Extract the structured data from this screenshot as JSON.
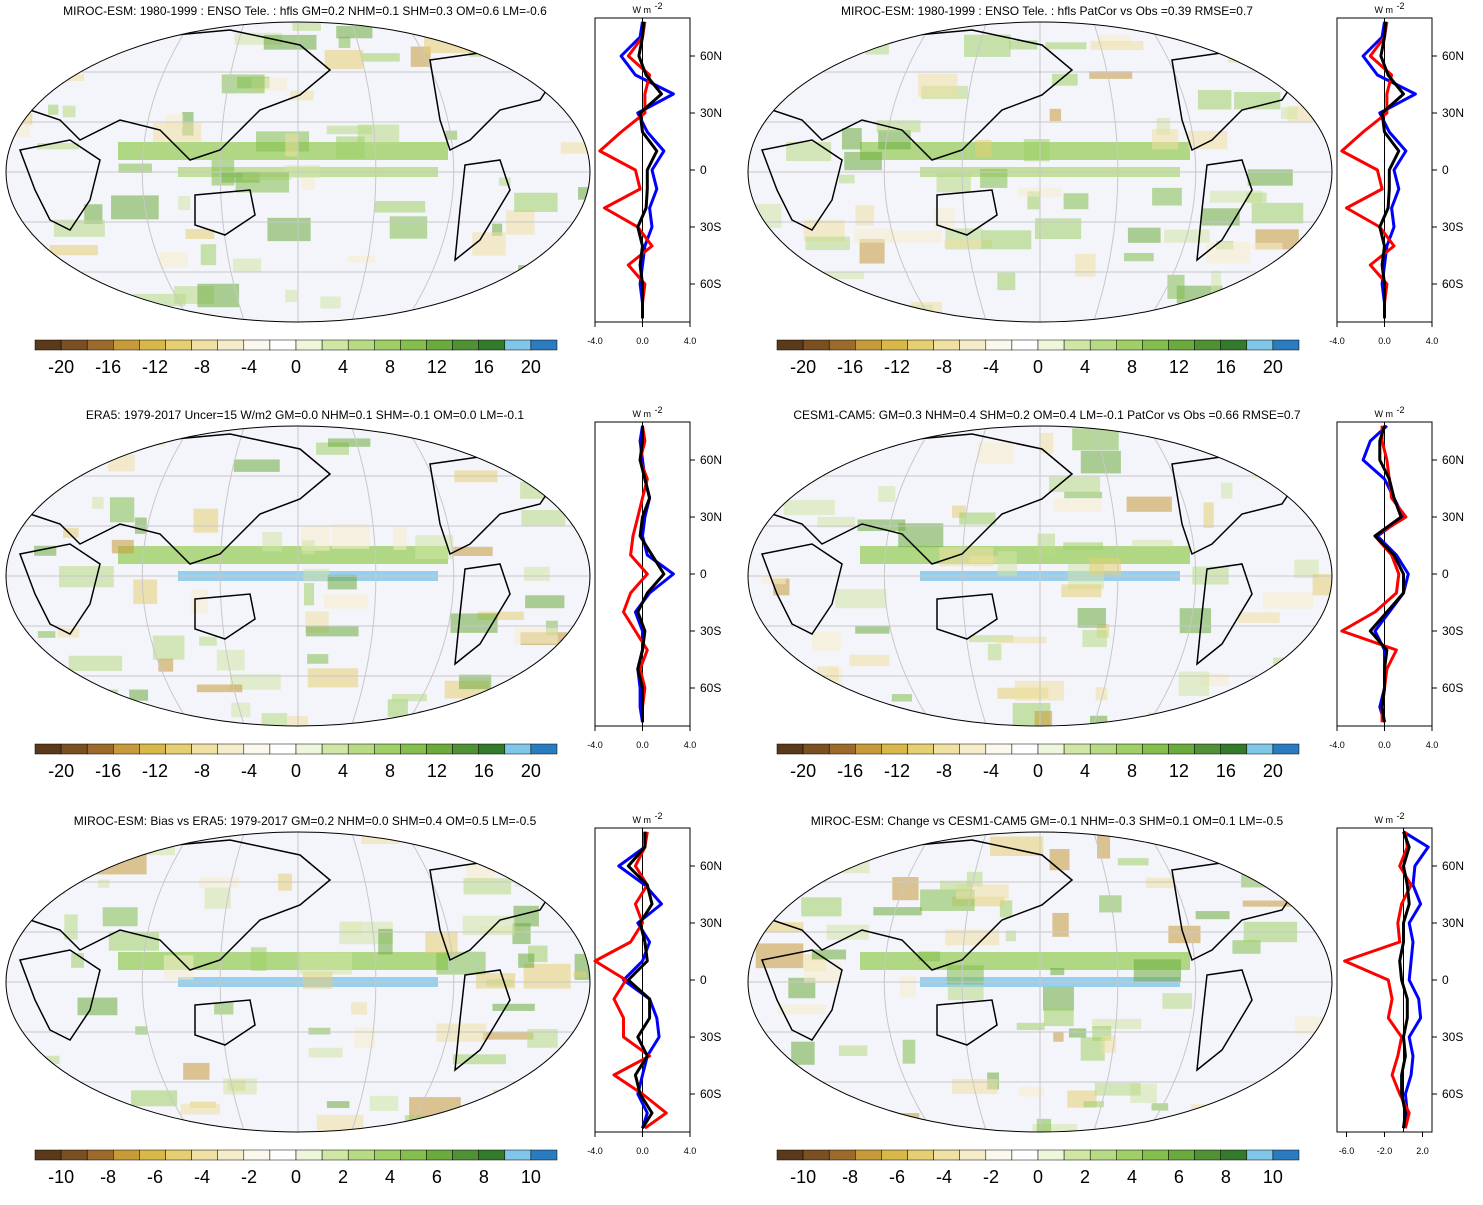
{
  "colors": {
    "zonal_model": "#ff0000",
    "zonal_obs": "#0000ff",
    "zonal_black": "#000000",
    "land_outline": "#000000",
    "ocean_bg": "#f4f4fb",
    "grid": "#c8c8c8"
  },
  "colorbar_palette": [
    "#5a3a1a",
    "#7a4f22",
    "#9b6a2c",
    "#c79a3a",
    "#d9b84a",
    "#e6cf73",
    "#efe0a3",
    "#f5ecc9",
    "#fbf8ee",
    "#ffffff",
    "#eef6dc",
    "#cfe6a4",
    "#b7da84",
    "#9fcf66",
    "#84bf4d",
    "#6bab3e",
    "#4f9134",
    "#347a2c",
    "#7fc6e8",
    "#2b7bc1"
  ],
  "panels": [
    {
      "title": "MIROC-ESM: 1980-1999 : ENSO Tele. : hfls GM=0.2 NHM=0.1 SHM=0.3 OM=0.6 LM=-0.6",
      "colorbar_labels": [
        "-20",
        "-16",
        "-12",
        "-8",
        "-4",
        "0",
        "4",
        "8",
        "12",
        "16",
        "20"
      ],
      "zonal": {
        "units": "W m",
        "units_sup": "-2",
        "x_ticks": [
          "-4.0",
          "0.0",
          "4.0"
        ],
        "xlim": [
          -4,
          4
        ],
        "y_ticks": [
          "60N",
          "30N",
          "0",
          "30S",
          "60S"
        ],
        "ylim": [
          -80,
          80
        ],
        "lat": [
          78,
          70,
          60,
          50,
          40,
          30,
          20,
          10,
          0,
          -10,
          -20,
          -30,
          -40,
          -50,
          -60,
          -70,
          -78
        ],
        "series_model": [
          0.2,
          0.0,
          -1.2,
          0.6,
          0.2,
          0.2,
          -1.8,
          -3.6,
          -0.6,
          -0.2,
          -3.2,
          -0.4,
          0.8,
          -1.2,
          0.2,
          0.0,
          0.0
        ],
        "series_obs": [
          0.0,
          -0.2,
          -1.8,
          -0.6,
          2.6,
          -0.4,
          0.4,
          1.8,
          0.8,
          1.2,
          0.6,
          0.8,
          0.2,
          0.0,
          -0.2,
          0.0,
          0.0
        ],
        "series_black": [
          0.1,
          0.0,
          -0.3,
          0.3,
          1.6,
          -0.2,
          0.0,
          1.2,
          0.4,
          0.4,
          0.3,
          -0.4,
          0.0,
          -0.2,
          0.0,
          0.0,
          0.0
        ]
      }
    },
    {
      "title": "MIROC-ESM: 1980-1999 : ENSO Tele. : hfls PatCor vs Obs =0.39 RMSE=0.7",
      "colorbar_labels": [
        "-20",
        "-16",
        "-12",
        "-8",
        "-4",
        "0",
        "4",
        "8",
        "12",
        "16",
        "20"
      ],
      "zonal": {
        "units": "W m",
        "units_sup": "-2",
        "x_ticks": [
          "-4.0",
          "0.0",
          "4.0"
        ],
        "xlim": [
          -4,
          4
        ],
        "y_ticks": [
          "60N",
          "30N",
          "0",
          "30S",
          "60S"
        ],
        "ylim": [
          -80,
          80
        ],
        "lat": [
          78,
          70,
          60,
          50,
          40,
          30,
          20,
          10,
          0,
          -10,
          -20,
          -30,
          -40,
          -50,
          -60,
          -70,
          -78
        ],
        "series_model": [
          0.2,
          0.0,
          -1.2,
          0.6,
          0.2,
          0.2,
          -1.8,
          -3.6,
          -0.6,
          -0.2,
          -3.2,
          -0.4,
          0.8,
          -1.2,
          0.2,
          0.0,
          0.0
        ],
        "series_obs": [
          0.0,
          -0.2,
          -1.8,
          -0.6,
          2.6,
          -0.4,
          0.4,
          1.8,
          0.8,
          1.2,
          0.6,
          0.8,
          0.2,
          0.0,
          -0.2,
          0.0,
          0.0
        ],
        "series_black": [
          0.1,
          0.0,
          -0.3,
          0.3,
          1.6,
          -0.2,
          0.0,
          1.2,
          0.4,
          0.4,
          0.3,
          -0.4,
          0.0,
          -0.2,
          0.0,
          0.0,
          0.0
        ]
      }
    },
    {
      "title": "ERA5: 1979-2017 Uncer=15 W/m2 GM=0.0 NHM=0.1 SHM=-0.1 OM=0.0 LM=-0.1",
      "colorbar_labels": [
        "-20",
        "-16",
        "-12",
        "-8",
        "-4",
        "0",
        "4",
        "8",
        "12",
        "16",
        "20"
      ],
      "zonal": {
        "units": "W m",
        "units_sup": "-2",
        "x_ticks": [
          "-4.0",
          "0.0",
          "4.0"
        ],
        "xlim": [
          -4,
          4
        ],
        "y_ticks": [
          "60N",
          "30N",
          "0",
          "30S",
          "60S"
        ],
        "ylim": [
          -80,
          80
        ],
        "lat": [
          78,
          70,
          60,
          50,
          40,
          30,
          20,
          10,
          0,
          -10,
          -20,
          -30,
          -40,
          -50,
          -60,
          -70,
          -78
        ],
        "series_model": [
          0.0,
          0.2,
          -0.2,
          0.4,
          0.0,
          -0.4,
          -0.8,
          -1.0,
          0.4,
          -1.0,
          -1.6,
          -0.6,
          0.4,
          -0.2,
          0.2,
          0.0,
          0.0
        ],
        "series_obs": [
          0.0,
          -0.2,
          0.0,
          0.2,
          0.6,
          0.2,
          0.0,
          0.4,
          2.6,
          0.6,
          -0.6,
          0.0,
          0.0,
          -0.4,
          -0.2,
          -0.2,
          0.0
        ],
        "series_black": [
          0.0,
          0.0,
          -0.2,
          0.2,
          0.6,
          0.0,
          -0.2,
          0.8,
          1.8,
          0.4,
          -0.4,
          0.2,
          0.0,
          -0.4,
          0.0,
          0.0,
          0.0
        ]
      }
    },
    {
      "title": "CESM1-CAM5: GM=0.3 NHM=0.4 SHM=0.2 OM=0.4 LM=-0.1 PatCor vs Obs =0.66 RMSE=0.7",
      "colorbar_labels": [
        "-20",
        "-16",
        "-12",
        "-8",
        "-4",
        "0",
        "4",
        "8",
        "12",
        "16",
        "20"
      ],
      "zonal": {
        "units": "W m",
        "units_sup": "-2",
        "x_ticks": [
          "-4.0",
          "0.0",
          "4.0"
        ],
        "xlim": [
          -4,
          4
        ],
        "y_ticks": [
          "60N",
          "30N",
          "0",
          "30S",
          "60S"
        ],
        "ylim": [
          -80,
          80
        ],
        "lat": [
          78,
          70,
          60,
          50,
          40,
          30,
          20,
          10,
          0,
          -10,
          -20,
          -30,
          -40,
          -50,
          -60,
          -70,
          -78
        ],
        "series_model": [
          -0.2,
          -0.2,
          0.2,
          0.4,
          0.6,
          1.8,
          -0.8,
          0.6,
          1.2,
          1.0,
          -0.8,
          -3.6,
          1.0,
          0.2,
          0.0,
          -0.2,
          -0.2
        ],
        "series_obs": [
          0.2,
          -1.2,
          -1.8,
          0.0,
          0.8,
          1.6,
          -0.6,
          1.0,
          2.0,
          1.6,
          0.4,
          -0.8,
          0.0,
          0.0,
          0.0,
          -0.4,
          0.0
        ],
        "series_black": [
          0.0,
          -0.4,
          -0.4,
          0.4,
          0.8,
          1.4,
          -0.8,
          0.8,
          1.6,
          1.6,
          0.2,
          -1.2,
          0.2,
          0.0,
          0.0,
          -0.2,
          0.0
        ]
      }
    },
    {
      "title": "MIROC-ESM: Bias vs ERA5: 1979-2017 GM=0.2 NHM=0.0 SHM=0.4 OM=0.5 LM=-0.5",
      "colorbar_labels": [
        "-10",
        "-8",
        "-6",
        "-4",
        "-2",
        "0",
        "2",
        "4",
        "6",
        "8",
        "10"
      ],
      "zonal": {
        "units": "W m",
        "units_sup": "-2",
        "x_ticks": [
          "-4.0",
          "0.0",
          "4.0"
        ],
        "xlim": [
          -4,
          4
        ],
        "y_ticks": [
          "60N",
          "30N",
          "0",
          "30S",
          "60S"
        ],
        "ylim": [
          -80,
          80
        ],
        "lat": [
          78,
          70,
          60,
          50,
          40,
          30,
          20,
          10,
          0,
          -10,
          -20,
          -30,
          -40,
          -50,
          -60,
          -70,
          -78
        ],
        "series_model": [
          0.4,
          0.2,
          -0.6,
          0.4,
          -0.6,
          0.0,
          -1.0,
          -4.0,
          -1.4,
          -2.4,
          -1.6,
          -1.6,
          0.6,
          -2.4,
          0.0,
          2.0,
          0.2
        ],
        "series_obs": [
          0.2,
          0.2,
          -2.0,
          0.2,
          1.6,
          -0.4,
          0.6,
          0.0,
          -1.6,
          0.6,
          1.2,
          1.4,
          0.4,
          0.0,
          -0.4,
          0.4,
          0.0
        ],
        "series_black": [
          0.2,
          0.2,
          -1.2,
          0.4,
          0.8,
          -0.2,
          0.2,
          0.4,
          -1.2,
          0.6,
          0.6,
          -0.4,
          0.4,
          -0.6,
          -0.2,
          0.8,
          0.0
        ]
      }
    },
    {
      "title": "MIROC-ESM: Change vs CESM1-CAM5 GM=-0.1 NHM=-0.3 SHM=0.1 OM=0.1 LM=-0.5",
      "colorbar_labels": [
        "-10",
        "-8",
        "-6",
        "-4",
        "-2",
        "0",
        "2",
        "4",
        "6",
        "8",
        "10"
      ],
      "zonal": {
        "units": "W m",
        "units_sup": "-2",
        "x_ticks": [
          "-6.0",
          "-2.0",
          "2.0"
        ],
        "xlim": [
          -7,
          3
        ],
        "y_ticks": [
          "60N",
          "30N",
          "0",
          "30S",
          "60S"
        ],
        "ylim": [
          -80,
          80
        ],
        "lat": [
          78,
          70,
          60,
          50,
          40,
          30,
          20,
          10,
          0,
          -10,
          -20,
          -30,
          -40,
          -50,
          -60,
          -70,
          -78
        ],
        "series_model": [
          0.2,
          0.4,
          -0.4,
          0.8,
          -0.2,
          -0.6,
          -0.4,
          -6.2,
          -1.6,
          -1.2,
          -1.6,
          -0.2,
          -0.6,
          -1.2,
          -0.4,
          0.6,
          0.2
        ],
        "series_obs": [
          0.0,
          2.6,
          1.2,
          1.0,
          1.8,
          0.6,
          1.0,
          0.8,
          0.6,
          1.6,
          1.8,
          0.6,
          1.0,
          0.8,
          0.2,
          0.4,
          0.0
        ],
        "series_black": [
          0.0,
          0.6,
          0.0,
          0.4,
          0.6,
          0.0,
          0.0,
          -0.4,
          -0.2,
          0.4,
          0.4,
          0.0,
          0.2,
          -0.2,
          -0.2,
          0.2,
          0.0
        ]
      }
    }
  ]
}
